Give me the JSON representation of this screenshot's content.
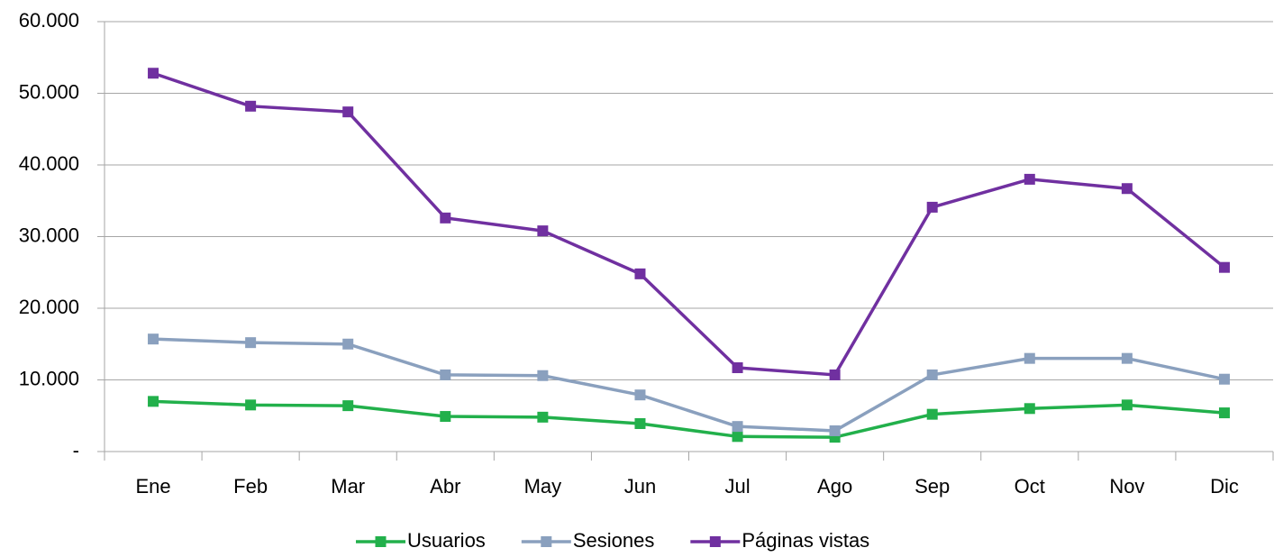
{
  "chart_data": {
    "type": "line",
    "categories": [
      "Ene",
      "Feb",
      "Mar",
      "Abr",
      "May",
      "Jun",
      "Jul",
      "Ago",
      "Sep",
      "Oct",
      "Nov",
      "Dic"
    ],
    "series": [
      {
        "name": "Usuarios",
        "color": "#22b04b",
        "values": [
          7000,
          6500,
          6400,
          4900,
          4800,
          3900,
          2100,
          2000,
          5200,
          6000,
          6500,
          5400
        ]
      },
      {
        "name": "Sesiones",
        "color": "#8aa0be",
        "values": [
          15700,
          15200,
          15000,
          10700,
          10600,
          7900,
          3500,
          2900,
          10700,
          13000,
          13000,
          10100
        ]
      },
      {
        "name": "Páginas vistas",
        "color": "#7030a0",
        "values": [
          52800,
          48200,
          47400,
          32600,
          30800,
          24800,
          11700,
          10700,
          34100,
          38000,
          36700,
          25700
        ]
      }
    ],
    "ylim": [
      0,
      60000
    ],
    "yticks": [
      {
        "value": 0,
        "label": "-"
      },
      {
        "value": 10000,
        "label": "10.000"
      },
      {
        "value": 20000,
        "label": "20.000"
      },
      {
        "value": 30000,
        "label": "30.000"
      },
      {
        "value": 40000,
        "label": "40.000"
      },
      {
        "value": 50000,
        "label": "50.000"
      },
      {
        "value": 60000,
        "label": "60.000"
      }
    ],
    "grid": true,
    "legend": "bottom"
  }
}
